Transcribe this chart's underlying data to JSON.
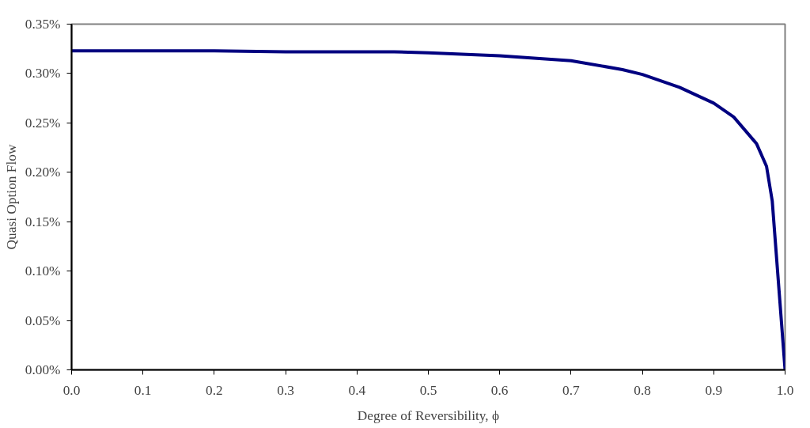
{
  "chart_data": {
    "type": "line",
    "xlabel": "Degree of Reversibility, ϕ",
    "ylabel": "Quasi Option Flow",
    "x": [
      0.0,
      0.1,
      0.2,
      0.3,
      0.4,
      0.452,
      0.5,
      0.6,
      0.7,
      0.772,
      0.8,
      0.852,
      0.9,
      0.928,
      0.96,
      0.974,
      0.982,
      0.992,
      1.0
    ],
    "series": [
      {
        "color": "#000080",
        "values": [
          0.323,
          0.323,
          0.323,
          0.322,
          0.322,
          0.322,
          0.321,
          0.318,
          0.313,
          0.304,
          0.299,
          0.286,
          0.27,
          0.256,
          0.229,
          0.206,
          0.171,
          0.076,
          0.0
        ]
      }
    ],
    "xlim": [
      0.0,
      1.0
    ],
    "ylim": [
      0.0,
      0.35
    ],
    "xticks": [
      {
        "value": 0.0,
        "label": "0.0"
      },
      0.1,
      0.2,
      0.3,
      0.4,
      0.5,
      0.6,
      0.7,
      0.8,
      0.9,
      {
        "value": 1.0,
        "label": "1.0"
      }
    ],
    "yticks": [
      {
        "value": 0.0,
        "label": "0.00%"
      },
      {
        "value": 0.05,
        "label": "0.05%"
      },
      {
        "value": 0.1,
        "label": "0.10%"
      },
      {
        "value": 0.15,
        "label": "0.15%"
      },
      {
        "value": 0.2,
        "label": "0.20%"
      },
      {
        "value": 0.25,
        "label": "0.25%"
      },
      {
        "value": 0.3,
        "label": "0.30%"
      },
      {
        "value": 0.35,
        "label": "0.35%"
      }
    ],
    "grid": false,
    "line_style": "solid"
  }
}
